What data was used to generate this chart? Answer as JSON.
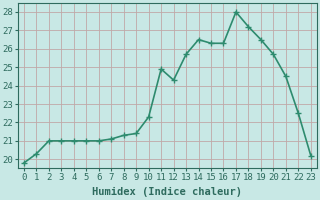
{
  "x": [
    0,
    1,
    2,
    3,
    4,
    5,
    6,
    7,
    8,
    9,
    10,
    11,
    12,
    13,
    14,
    15,
    16,
    17,
    18,
    19,
    20,
    21,
    22,
    23
  ],
  "y": [
    19.8,
    20.3,
    21.0,
    21.0,
    21.0,
    21.0,
    21.0,
    21.1,
    21.3,
    21.4,
    22.3,
    24.9,
    24.3,
    25.7,
    26.5,
    26.3,
    26.3,
    28.0,
    27.2,
    26.5,
    25.7,
    24.5,
    22.5,
    20.2
  ],
  "line_color": "#2e8b6e",
  "marker": "+",
  "marker_size": 5,
  "bg_color": "#c8e8e5",
  "grid_color": "#c0a8a8",
  "xlabel": "Humidex (Indice chaleur)",
  "ylabel_ticks": [
    20,
    21,
    22,
    23,
    24,
    25,
    26,
    27,
    28
  ],
  "ylim": [
    19.5,
    28.5
  ],
  "xlim": [
    -0.5,
    23.5
  ],
  "xtick_labels": [
    "0",
    "1",
    "2",
    "3",
    "4",
    "5",
    "6",
    "7",
    "8",
    "9",
    "10",
    "11",
    "12",
    "13",
    "14",
    "15",
    "16",
    "17",
    "18",
    "19",
    "20",
    "21",
    "22",
    "23"
  ],
  "axis_label_color": "#2e6b5e",
  "tick_color": "#2e6b5e",
  "line_width": 1.2,
  "tick_fontsize": 6.5,
  "xlabel_fontsize": 7.5
}
